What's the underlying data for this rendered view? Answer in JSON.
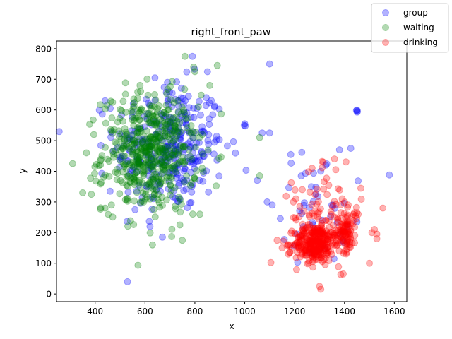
{
  "chart_data": {
    "type": "scatter",
    "title": "right_front_paw",
    "xlabel": "x",
    "ylabel": "y",
    "xlim": [
      245,
      1650
    ],
    "ylim": [
      -25,
      825
    ],
    "xticks": [
      400,
      600,
      800,
      1000,
      1200,
      1400,
      1600
    ],
    "yticks": [
      0,
      100,
      200,
      300,
      400,
      500,
      600,
      700,
      800
    ],
    "grid": false,
    "legend_position": "top-right",
    "series": [
      {
        "name": "group",
        "color": "#0000ff",
        "alpha": 0.3,
        "clusters": [
          {
            "cx": 700,
            "cy": 480,
            "sx": 110,
            "sy": 105,
            "n": 320
          },
          {
            "cx": 1290,
            "cy": 290,
            "sx": 70,
            "sy": 95,
            "n": 40
          }
        ],
        "points": [
          {
            "x": 1450,
            "y": 600
          },
          {
            "x": 1452,
            "y": 596
          },
          {
            "x": 1448,
            "y": 598
          },
          {
            "x": 1451,
            "y": 593
          },
          {
            "x": 1000,
            "y": 555
          },
          {
            "x": 998,
            "y": 550
          },
          {
            "x": 1002,
            "y": 548
          },
          {
            "x": 1580,
            "y": 388
          },
          {
            "x": 1100,
            "y": 750
          },
          {
            "x": 790,
            "y": 775
          },
          {
            "x": 1070,
            "y": 525
          },
          {
            "x": 1100,
            "y": 525
          },
          {
            "x": 1090,
            "y": 300
          },
          {
            "x": 1110,
            "y": 290
          },
          {
            "x": 1050,
            "y": 370
          },
          {
            "x": 620,
            "y": 220
          },
          {
            "x": 670,
            "y": 185
          },
          {
            "x": 560,
            "y": 275
          },
          {
            "x": 460,
            "y": 335
          },
          {
            "x": 440,
            "y": 630
          },
          {
            "x": 640,
            "y": 705
          },
          {
            "x": 690,
            "y": 690
          },
          {
            "x": 1450,
            "y": 235
          },
          {
            "x": 1380,
            "y": 470
          },
          {
            "x": 1305,
            "y": 400
          },
          {
            "x": 1325,
            "y": 420
          },
          {
            "x": 1210,
            "y": 195
          },
          {
            "x": 1260,
            "y": 135
          }
        ]
      },
      {
        "name": "waiting",
        "color": "#008000",
        "alpha": 0.3,
        "clusters": [
          {
            "cx": 620,
            "cy": 460,
            "sx": 95,
            "sy": 95,
            "n": 520
          }
        ],
        "points": [
          {
            "x": 310,
            "y": 425
          },
          {
            "x": 350,
            "y": 330
          },
          {
            "x": 365,
            "y": 460
          },
          {
            "x": 385,
            "y": 325
          },
          {
            "x": 440,
            "y": 280
          },
          {
            "x": 630,
            "y": 160
          },
          {
            "x": 760,
            "y": 775
          },
          {
            "x": 795,
            "y": 740
          },
          {
            "x": 800,
            "y": 725
          },
          {
            "x": 890,
            "y": 745
          },
          {
            "x": 1060,
            "y": 510
          },
          {
            "x": 1060,
            "y": 385
          },
          {
            "x": 740,
            "y": 225
          },
          {
            "x": 820,
            "y": 260
          },
          {
            "x": 860,
            "y": 680
          },
          {
            "x": 470,
            "y": 625
          },
          {
            "x": 580,
            "y": 680
          }
        ]
      },
      {
        "name": "drinking",
        "color": "#ff0000",
        "alpha": 0.3,
        "clusters": [
          {
            "cx": 1280,
            "cy": 165,
            "sx": 40,
            "sy": 30,
            "n": 260
          },
          {
            "cx": 1400,
            "cy": 200,
            "sx": 25,
            "sy": 30,
            "n": 90
          },
          {
            "cx": 1330,
            "cy": 250,
            "sx": 70,
            "sy": 70,
            "n": 100
          }
        ],
        "points": [
          {
            "x": 1300,
            "y": 25
          },
          {
            "x": 1305,
            "y": 15
          },
          {
            "x": 1395,
            "y": 65
          },
          {
            "x": 1500,
            "y": 100
          },
          {
            "x": 1440,
            "y": 265
          },
          {
            "x": 1450,
            "y": 265
          },
          {
            "x": 1445,
            "y": 255
          },
          {
            "x": 1455,
            "y": 260
          },
          {
            "x": 1520,
            "y": 210
          },
          {
            "x": 1530,
            "y": 195
          },
          {
            "x": 1510,
            "y": 200
          },
          {
            "x": 1530,
            "y": 180
          },
          {
            "x": 1315,
            "y": 430
          },
          {
            "x": 1310,
            "y": 432
          },
          {
            "x": 1365,
            "y": 405
          },
          {
            "x": 1180,
            "y": 135
          },
          {
            "x": 1175,
            "y": 130
          },
          {
            "x": 1150,
            "y": 150
          },
          {
            "x": 1130,
            "y": 175
          },
          {
            "x": 1195,
            "y": 300
          },
          {
            "x": 1205,
            "y": 310
          },
          {
            "x": 1360,
            "y": 440
          },
          {
            "x": 1270,
            "y": 410
          },
          {
            "x": 1415,
            "y": 290
          }
        ]
      }
    ]
  }
}
